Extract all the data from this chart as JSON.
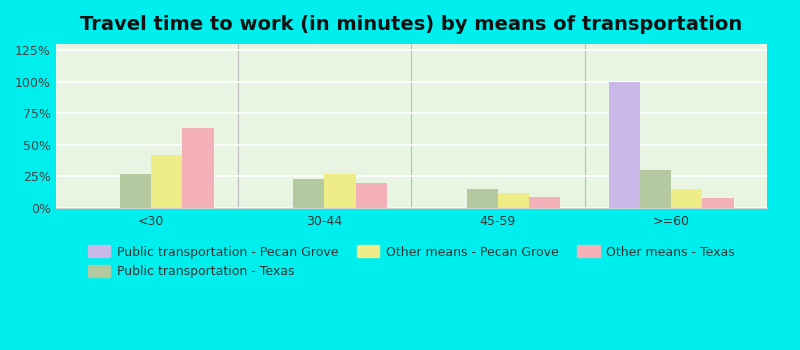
{
  "title": "Travel time to work (in minutes) by means of transportation",
  "categories": [
    "<30",
    "30-44",
    "45-59",
    ">=60"
  ],
  "series_order": [
    "Public transportation - Pecan Grove",
    "Public transportation - Texas",
    "Other means - Pecan Grove",
    "Other means - Texas"
  ],
  "series": {
    "Public transportation - Pecan Grove": [
      0,
      0,
      0,
      100
    ],
    "Public transportation - Texas": [
      27,
      23,
      15,
      30
    ],
    "Other means - Pecan Grove": [
      42,
      27,
      12,
      15
    ],
    "Other means - Texas": [
      63,
      20,
      9,
      8
    ]
  },
  "series_colors": {
    "Public transportation - Pecan Grove": "#c9b8e8",
    "Public transportation - Texas": "#b5c9a0",
    "Other means - Pecan Grove": "#eeed88",
    "Other means - Texas": "#f4b0b8"
  },
  "yticks": [
    0,
    25,
    50,
    75,
    100,
    125
  ],
  "ytick_labels": [
    "0%",
    "25%",
    "50%",
    "75%",
    "100%",
    "125%"
  ],
  "ylim": [
    0,
    130
  ],
  "background_color": "#00eeee",
  "plot_bg_color": "#e8f5e2",
  "title_fontsize": 14,
  "legend_fontsize": 9,
  "tick_fontsize": 9,
  "bar_width": 0.18,
  "legend_order": [
    "Public transportation - Pecan Grove",
    "Public transportation - Texas",
    "Other means - Pecan Grove",
    "Other means - Texas"
  ]
}
